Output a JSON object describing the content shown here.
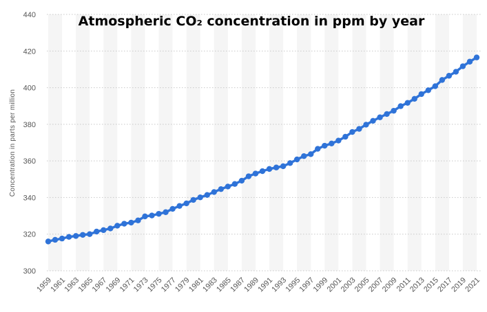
{
  "chart_data": {
    "type": "line",
    "title": "Atmospheric CO₂  concentration in ppm by year",
    "xlabel": "",
    "ylabel": "Concentration in parts per million",
    "ylim": [
      300,
      440
    ],
    "yticks": [
      300,
      320,
      340,
      360,
      380,
      400,
      420,
      440
    ],
    "grid": true,
    "x": [
      1959,
      1960,
      1961,
      1962,
      1963,
      1964,
      1965,
      1966,
      1967,
      1968,
      1969,
      1970,
      1971,
      1972,
      1973,
      1974,
      1975,
      1976,
      1977,
      1978,
      1979,
      1980,
      1981,
      1982,
      1983,
      1984,
      1985,
      1986,
      1987,
      1988,
      1989,
      1990,
      1991,
      1992,
      1993,
      1994,
      1995,
      1996,
      1997,
      1998,
      1999,
      2000,
      2001,
      2002,
      2003,
      2004,
      2005,
      2006,
      2007,
      2008,
      2009,
      2010,
      2011,
      2012,
      2013,
      2014,
      2015,
      2016,
      2017,
      2018,
      2019,
      2020,
      2021
    ],
    "xtick_labels": [
      "1959",
      "1961",
      "1963",
      "1965",
      "1967",
      "1969",
      "1971",
      "1973",
      "1975",
      "1977",
      "1979",
      "1981",
      "1983",
      "1985",
      "1987",
      "1989",
      "1991",
      "1993",
      "1995",
      "1997",
      "1999",
      "2001",
      "2003",
      "2005",
      "2007",
      "2009",
      "2011",
      "2013",
      "2015",
      "2017",
      "2019",
      "2021"
    ],
    "series": [
      {
        "color": "#2f73d8",
        "values": [
          316.0,
          316.9,
          317.6,
          318.5,
          319.0,
          319.6,
          320.0,
          321.4,
          322.2,
          323.1,
          324.6,
          325.7,
          326.3,
          327.5,
          329.7,
          330.2,
          331.1,
          332.0,
          333.8,
          335.4,
          336.8,
          338.7,
          340.1,
          341.4,
          343.0,
          344.6,
          346.0,
          347.4,
          349.2,
          351.6,
          353.1,
          354.4,
          355.6,
          356.4,
          357.1,
          358.8,
          360.8,
          362.6,
          363.7,
          366.6,
          368.3,
          369.5,
          371.1,
          373.2,
          375.8,
          377.5,
          379.8,
          381.9,
          383.8,
          385.6,
          387.4,
          389.9,
          391.7,
          393.9,
          396.5,
          398.6,
          400.8,
          404.2,
          406.5,
          408.7,
          411.7,
          414.2,
          416.5
        ]
      }
    ]
  }
}
